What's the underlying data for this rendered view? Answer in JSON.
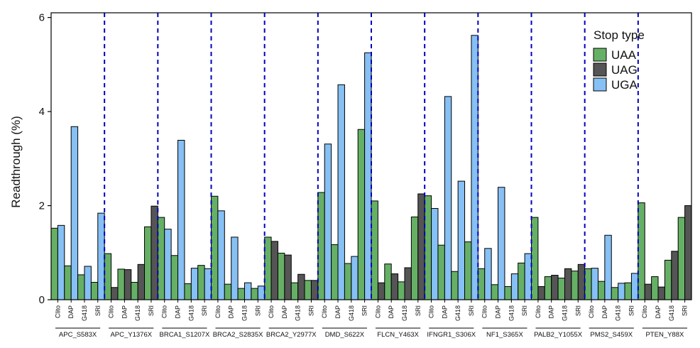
{
  "chart_data": {
    "type": "bar",
    "ylabel": "Readthrough (%)",
    "ylim": [
      0,
      6.1
    ],
    "yticks": [
      0,
      2,
      4,
      6
    ],
    "conditions": [
      "Clito",
      "DAP",
      "G418",
      "SRI"
    ],
    "legend": {
      "title": "Stop type",
      "placement": "top-right",
      "entries": [
        {
          "name": "UAA",
          "color": "#66b066"
        },
        {
          "name": "UAG",
          "color": "#555555"
        },
        {
          "name": "UGA",
          "color": "#86c0f4"
        }
      ]
    },
    "separator_color": "#0000bb",
    "genes": [
      {
        "name": "APC_S583X",
        "values": {
          "Clito": [
            1.52,
            1.58
          ],
          "DAP": [
            0.72,
            3.68
          ],
          "G418": [
            0.53,
            0.71
          ],
          "SRI": [
            0.37,
            1.84
          ]
        },
        "stops": {
          "Clito": [
            "UAA",
            "UGA"
          ],
          "DAP": [
            "UAA",
            "UGA"
          ],
          "G418": [
            "UAA",
            "UGA"
          ],
          "SRI": [
            "UAA",
            "UGA"
          ]
        }
      },
      {
        "name": "APC_Y1376X",
        "values": {
          "Clito": [
            0.98,
            0.26
          ],
          "DAP": [
            0.65,
            0.64
          ],
          "G418": [
            0.37,
            0.75
          ],
          "SRI": [
            1.55,
            1.99
          ]
        },
        "stops": {
          "Clito": [
            "UAA",
            "UAG"
          ],
          "DAP": [
            "UAA",
            "UAG"
          ],
          "G418": [
            "UAA",
            "UAG"
          ],
          "SRI": [
            "UAA",
            "UAG"
          ]
        }
      },
      {
        "name": "BRCA1_S1207X",
        "values": {
          "Clito": [
            1.75,
            1.5
          ],
          "DAP": [
            0.94,
            3.39
          ],
          "G418": [
            0.34,
            0.67
          ],
          "SRI": [
            0.73,
            0.66
          ]
        },
        "stops": {
          "Clito": [
            "UAA",
            "UGA"
          ],
          "DAP": [
            "UAA",
            "UGA"
          ],
          "G418": [
            "UAA",
            "UGA"
          ],
          "SRI": [
            "UAA",
            "UGA"
          ]
        }
      },
      {
        "name": "BRCA2_S2835X",
        "values": {
          "Clito": [
            2.2,
            1.89
          ],
          "DAP": [
            0.33,
            1.33
          ],
          "G418": [
            0.24,
            0.36
          ],
          "SRI": [
            0.24,
            0.29
          ]
        },
        "stops": {
          "Clito": [
            "UAA",
            "UGA"
          ],
          "DAP": [
            "UAA",
            "UGA"
          ],
          "G418": [
            "UAA",
            "UGA"
          ],
          "SRI": [
            "UAA",
            "UGA"
          ]
        }
      },
      {
        "name": "BRCA2_Y2977X",
        "values": {
          "Clito": [
            1.33,
            1.24
          ],
          "DAP": [
            0.99,
            0.95
          ],
          "G418": [
            0.36,
            0.54
          ],
          "SRI": [
            0.41,
            0.41
          ]
        },
        "stops": {
          "Clito": [
            "UAA",
            "UAG"
          ],
          "DAP": [
            "UAA",
            "UAG"
          ],
          "G418": [
            "UAA",
            "UAG"
          ],
          "SRI": [
            "UAA",
            "UAG"
          ]
        }
      },
      {
        "name": "DMD_S622X",
        "values": {
          "Clito": [
            2.28,
            3.31
          ],
          "DAP": [
            1.17,
            4.57
          ],
          "G418": [
            0.77,
            0.92
          ],
          "SRI": [
            3.62,
            5.25
          ]
        },
        "stops": {
          "Clito": [
            "UAA",
            "UGA"
          ],
          "DAP": [
            "UAA",
            "UGA"
          ],
          "G418": [
            "UAA",
            "UGA"
          ],
          "SRI": [
            "UAA",
            "UGA"
          ]
        }
      },
      {
        "name": "FLCN_Y463X",
        "values": {
          "Clito": [
            2.1,
            0.36
          ],
          "DAP": [
            0.76,
            0.55
          ],
          "G418": [
            0.38,
            0.68
          ],
          "SRI": [
            1.76,
            2.25
          ]
        },
        "stops": {
          "Clito": [
            "UAA",
            "UAG"
          ],
          "DAP": [
            "UAA",
            "UAG"
          ],
          "G418": [
            "UAA",
            "UAG"
          ],
          "SRI": [
            "UAA",
            "UAG"
          ]
        }
      },
      {
        "name": "IFNGR1_S306X",
        "values": {
          "Clito": [
            2.21,
            1.94
          ],
          "DAP": [
            1.16,
            4.32
          ],
          "G418": [
            0.6,
            2.52
          ],
          "SRI": [
            1.23,
            5.62
          ]
        },
        "stops": {
          "Clito": [
            "UAA",
            "UGA"
          ],
          "DAP": [
            "UAA",
            "UGA"
          ],
          "G418": [
            "UAA",
            "UGA"
          ],
          "SRI": [
            "UAA",
            "UGA"
          ]
        }
      },
      {
        "name": "NF1_S365X",
        "values": {
          "Clito": [
            0.66,
            1.09
          ],
          "DAP": [
            0.32,
            2.39
          ],
          "G418": [
            0.28,
            0.55
          ],
          "SRI": [
            0.78,
            0.98
          ]
        },
        "stops": {
          "Clito": [
            "UAA",
            "UGA"
          ],
          "DAP": [
            "UAA",
            "UGA"
          ],
          "G418": [
            "UAA",
            "UGA"
          ],
          "SRI": [
            "UAA",
            "UGA"
          ]
        }
      },
      {
        "name": "PALB2_Y1055X",
        "values": {
          "Clito": [
            1.75,
            0.28
          ],
          "DAP": [
            0.49,
            0.52
          ],
          "G418": [
            0.46,
            0.66
          ],
          "SRI": [
            0.61,
            0.75
          ]
        },
        "stops": {
          "Clito": [
            "UAA",
            "UAG"
          ],
          "DAP": [
            "UAA",
            "UAG"
          ],
          "G418": [
            "UAA",
            "UAG"
          ],
          "SRI": [
            "UAA",
            "UAG"
          ]
        }
      },
      {
        "name": "PMS2_S459X",
        "values": {
          "Clito": [
            0.66,
            0.67
          ],
          "DAP": [
            0.39,
            1.37
          ],
          "G418": [
            0.26,
            0.35
          ],
          "SRI": [
            0.36,
            0.56
          ]
        },
        "stops": {
          "Clito": [
            "UAA",
            "UGA"
          ],
          "DAP": [
            "UAA",
            "UGA"
          ],
          "G418": [
            "UAA",
            "UGA"
          ],
          "SRI": [
            "UAA",
            "UGA"
          ]
        }
      },
      {
        "name": "PTEN_Y88X",
        "values": {
          "Clito": [
            2.06,
            0.33
          ],
          "DAP": [
            0.49,
            0.27
          ],
          "G418": [
            0.84,
            1.03
          ],
          "SRI": [
            1.75,
            2.0
          ]
        },
        "stops": {
          "Clito": [
            "UAA",
            "UAG"
          ],
          "DAP": [
            "UAA",
            "UAG"
          ],
          "G418": [
            "UAA",
            "UAG"
          ],
          "SRI": [
            "UAA",
            "UAG"
          ]
        }
      }
    ]
  }
}
